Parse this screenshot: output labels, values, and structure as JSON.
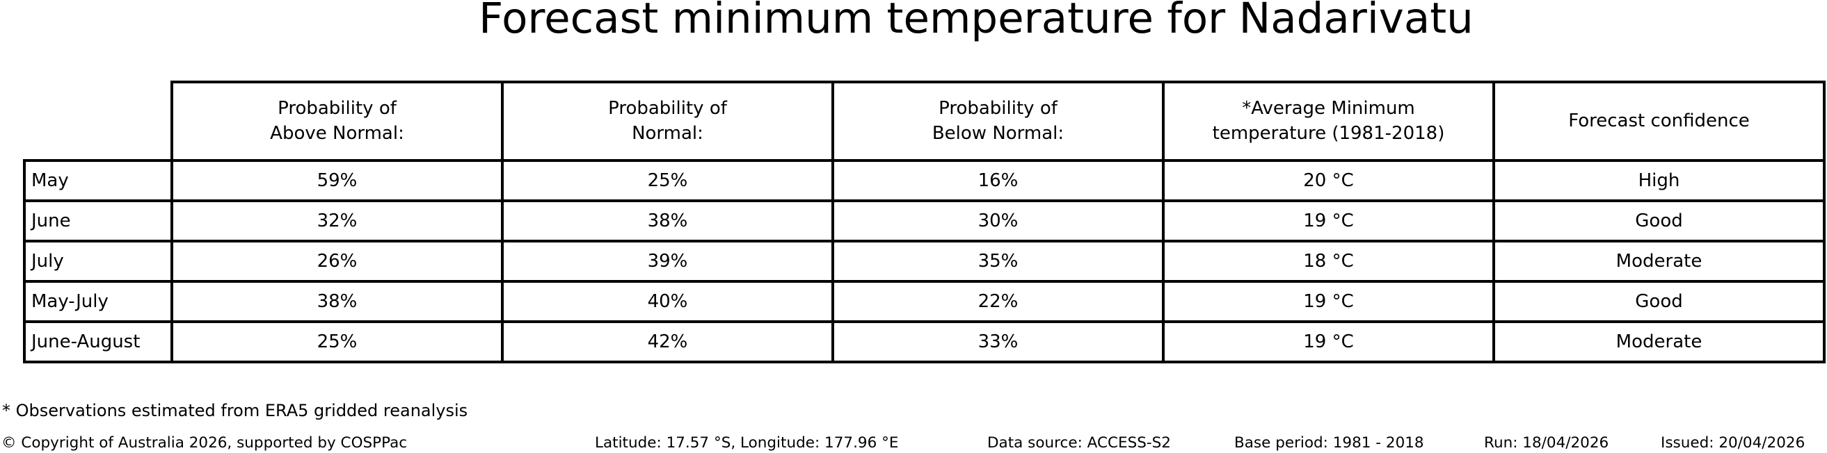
{
  "chart_data": {
    "type": "table",
    "title": "Forecast minimum temperature for Nadarivatu",
    "columns": [
      "Probability of\nAbove Normal:",
      "Probability of\nNormal:",
      "Probability of\nBelow Normal:",
      "*Average Minimum\ntemperature (1981-2018)",
      "Forecast confidence"
    ],
    "rows": [
      {
        "label": "May",
        "above_normal": "59%",
        "normal": "25%",
        "below_normal": "16%",
        "avg_min_temp": "20 °C",
        "confidence": "High"
      },
      {
        "label": "June",
        "above_normal": "32%",
        "normal": "38%",
        "below_normal": "30%",
        "avg_min_temp": "19 °C",
        "confidence": "Good"
      },
      {
        "label": "July",
        "above_normal": "26%",
        "normal": "39%",
        "below_normal": "35%",
        "avg_min_temp": "18 °C",
        "confidence": "Moderate"
      },
      {
        "label": "May-July",
        "above_normal": "38%",
        "normal": "40%",
        "below_normal": "22%",
        "avg_min_temp": "19 °C",
        "confidence": "Good"
      },
      {
        "label": "June-August",
        "above_normal": "25%",
        "normal": "42%",
        "below_normal": "33%",
        "avg_min_temp": "19 °C",
        "confidence": "Moderate"
      }
    ],
    "layout": {
      "grid": true,
      "text_color": "#000000",
      "border_color": "#000000",
      "background": "#ffffff"
    }
  },
  "footnote": "* Observations estimated from ERA5 gridded reanalysis",
  "footer": {
    "copyright": "© Copyright of Australia 2026, supported by COSPPac",
    "location": "Latitude: 17.57 °S, Longitude: 177.96 °E",
    "data_source": "Data source: ACCESS-S2",
    "base_period": "Base period: 1981 - 2018",
    "run": "Run: 18/04/2026",
    "issued": "Issued: 20/04/2026"
  }
}
